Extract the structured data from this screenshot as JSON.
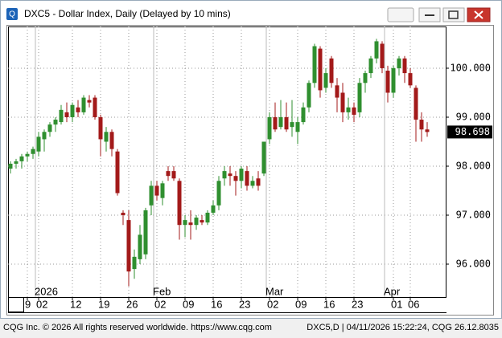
{
  "window": {
    "title": "DXC5 - Dollar Index, Daily (Delayed by 10 mins)"
  },
  "status_bar": {
    "left": "CQG Inc. © 2026 All rights reserved worldwide. https://www.cqg.com",
    "right": "DXC5,D | 04/11/2026 15:22:24, CQG 26.12.8035"
  },
  "chart_data": {
    "type": "candlestick",
    "ylim": [
      95.328,
      100.852
    ],
    "yticks": [
      {
        "value": 96,
        "label": "96.000"
      },
      {
        "value": 97,
        "label": "97.000"
      },
      {
        "value": 98,
        "label": "98.000"
      },
      {
        "value": 99,
        "label": "99.000"
      },
      {
        "value": 100,
        "label": "100.000"
      }
    ],
    "xticks": [
      {
        "value": 3,
        "label": "9"
      },
      {
        "value": 5,
        "label": "02"
      },
      {
        "value": 11,
        "label": "12"
      },
      {
        "value": 16,
        "label": "19"
      },
      {
        "value": 21,
        "label": "26"
      },
      {
        "value": 26,
        "label": "02"
      },
      {
        "value": 31,
        "label": "09"
      },
      {
        "value": 36,
        "label": "16"
      },
      {
        "value": 41,
        "label": "23"
      },
      {
        "value": 46,
        "label": "02"
      },
      {
        "value": 51,
        "label": "09"
      },
      {
        "value": 56,
        "label": "16"
      },
      {
        "value": 61,
        "label": "23"
      },
      {
        "value": 68,
        "label": "01"
      },
      {
        "value": 71,
        "label": "06"
      }
    ],
    "month_labels": [
      {
        "value": 5,
        "label": "2026"
      },
      {
        "value": 26,
        "label": "Feb"
      },
      {
        "value": 46,
        "label": "Mar"
      },
      {
        "value": 67,
        "label": "Apr"
      }
    ],
    "up_color": "#2f8f2f",
    "down_color": "#a31a1a",
    "grid": true,
    "open": [
      97.95,
      98.05,
      98.1,
      98.2,
      98.25,
      98.3,
      98.55,
      98.7,
      98.85,
      98.9,
      99.1,
      99.0,
      99.2,
      99.1,
      99.35,
      99.4,
      99.0,
      98.5,
      98.7,
      98.3,
      97.05,
      96.9,
      95.9,
      96.1,
      96.2,
      97.2,
      97.6,
      97.35,
      97.9,
      97.9,
      97.7,
      96.8,
      96.85,
      96.8,
      96.9,
      96.85,
      97.05,
      97.2,
      97.75,
      97.85,
      97.8,
      97.7,
      97.9,
      97.6,
      97.75,
      97.85,
      98.55,
      99.0,
      98.8,
      99.0,
      98.8,
      98.7,
      98.9,
      99.2,
      99.7,
      100.4,
      99.6,
      100.2,
      99.65,
      99.5,
      99.1,
      99.2,
      99.1,
      99.7,
      99.9,
      100.2,
      100.5,
      99.95,
      99.5,
      100.0,
      100.2,
      99.9,
      99.6,
      98.95,
      98.75
    ],
    "high": [
      98.1,
      98.15,
      98.25,
      98.3,
      98.4,
      98.7,
      98.75,
      98.9,
      99.0,
      99.25,
      99.3,
      99.3,
      99.35,
      99.45,
      99.45,
      99.45,
      99.05,
      98.8,
      98.75,
      98.35,
      97.1,
      97.1,
      96.3,
      96.8,
      97.15,
      97.7,
      97.7,
      97.7,
      98.0,
      98.0,
      97.75,
      97.0,
      97.1,
      97.0,
      97.0,
      97.1,
      97.3,
      97.8,
      98.0,
      98.0,
      97.9,
      98.0,
      98.0,
      97.8,
      97.9,
      98.5,
      99.1,
      99.3,
      99.35,
      99.3,
      99.35,
      99.0,
      99.3,
      99.75,
      100.5,
      100.45,
      100.0,
      100.25,
      99.8,
      99.7,
      99.4,
      99.3,
      99.8,
      99.95,
      100.25,
      100.6,
      100.55,
      100.05,
      100.05,
      100.25,
      100.25,
      100.0,
      99.65,
      99.1,
      98.9
    ],
    "low": [
      97.85,
      97.95,
      97.95,
      98.1,
      98.15,
      98.2,
      98.3,
      98.6,
      98.7,
      98.85,
      98.9,
      98.9,
      99.0,
      99.05,
      99.2,
      98.95,
      98.2,
      98.3,
      98.2,
      97.4,
      96.8,
      95.55,
      95.7,
      96.0,
      96.1,
      97.0,
      97.3,
      97.2,
      97.7,
      97.7,
      96.5,
      96.55,
      96.5,
      96.7,
      96.8,
      96.8,
      97.0,
      97.1,
      97.6,
      97.6,
      97.4,
      97.55,
      97.5,
      97.55,
      97.5,
      97.8,
      98.45,
      98.7,
      98.75,
      98.7,
      98.6,
      98.45,
      98.85,
      99.1,
      99.6,
      99.4,
      99.5,
      99.6,
      99.1,
      98.9,
      98.95,
      98.9,
      99.0,
      99.5,
      99.8,
      100.1,
      99.9,
      99.3,
      99.4,
      99.85,
      99.7,
      99.6,
      98.5,
      98.5,
      98.6
    ],
    "close": [
      98.05,
      98.1,
      98.2,
      98.25,
      98.35,
      98.6,
      98.7,
      98.85,
      98.95,
      99.15,
      99.0,
      99.25,
      99.1,
      99.4,
      99.3,
      99.0,
      98.55,
      98.7,
      98.35,
      97.45,
      97.0,
      95.85,
      96.15,
      96.6,
      97.1,
      97.6,
      97.4,
      97.65,
      97.8,
      97.75,
      96.8,
      96.9,
      96.8,
      96.95,
      96.85,
      97.05,
      97.2,
      97.7,
      97.9,
      97.8,
      97.7,
      97.95,
      97.6,
      97.7,
      97.6,
      98.5,
      99.0,
      98.75,
      99.0,
      98.75,
      98.9,
      98.9,
      99.2,
      99.7,
      100.45,
      99.55,
      99.9,
      99.7,
      99.4,
      99.1,
      99.2,
      99.05,
      99.7,
      99.9,
      100.2,
      100.55,
      100.0,
      99.5,
      100.0,
      100.2,
      99.9,
      99.65,
      98.95,
      98.75,
      98.698
    ]
  }
}
